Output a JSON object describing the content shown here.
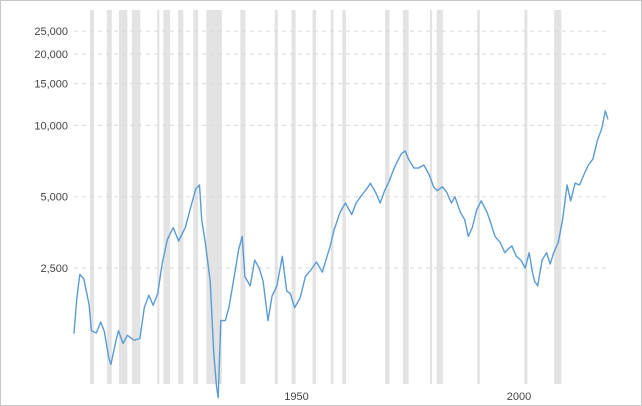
{
  "chart_data": {
    "type": "line",
    "title": "",
    "xlabel": "",
    "ylabel": "",
    "x_scale": "year",
    "y_scale": "log",
    "xlim": [
      1900,
      2020
    ],
    "ylim": [
      700,
      30000
    ],
    "grid": {
      "horizontal": true,
      "vertical": false
    },
    "legend": "none",
    "y_ticks": [
      {
        "value": 2500,
        "label": "2,500"
      },
      {
        "value": 5000,
        "label": "5,000"
      },
      {
        "value": 10000,
        "label": "10,000"
      },
      {
        "value": 15000,
        "label": "15,000"
      },
      {
        "value": 20000,
        "label": "20,000"
      },
      {
        "value": 25000,
        "label": "25,000"
      }
    ],
    "x_ticks": [
      {
        "value": 1950,
        "label": "1950"
      },
      {
        "value": 2000,
        "label": "2000"
      }
    ],
    "recession_bands": [
      [
        1903.6,
        1904.5
      ],
      [
        1907.4,
        1908.5
      ],
      [
        1910.1,
        1912.0
      ],
      [
        1913.0,
        1914.9
      ],
      [
        1918.7,
        1919.2
      ],
      [
        1920.1,
        1921.6
      ],
      [
        1923.4,
        1924.6
      ],
      [
        1926.8,
        1927.9
      ],
      [
        1929.7,
        1933.2
      ],
      [
        1937.4,
        1938.5
      ],
      [
        1945.1,
        1945.8
      ],
      [
        1948.9,
        1949.8
      ],
      [
        1953.6,
        1954.4
      ],
      [
        1957.7,
        1958.3
      ],
      [
        1960.3,
        1961.1
      ],
      [
        1969.9,
        1970.9
      ],
      [
        1973.9,
        1975.2
      ],
      [
        1980.0,
        1980.5
      ],
      [
        1981.5,
        1982.9
      ],
      [
        1990.6,
        1991.2
      ],
      [
        2001.2,
        2001.9
      ],
      [
        2007.9,
        2009.5
      ]
    ],
    "series": [
      {
        "name": "",
        "color": "#5b9bd5",
        "points": [
          [
            1900.0,
            1320
          ],
          [
            1900.6,
            1850
          ],
          [
            1901.3,
            2350
          ],
          [
            1902.2,
            2250
          ],
          [
            1903.4,
            1750
          ],
          [
            1903.9,
            1360
          ],
          [
            1905.0,
            1330
          ],
          [
            1906.0,
            1480
          ],
          [
            1906.8,
            1350
          ],
          [
            1907.8,
            1050
          ],
          [
            1908.3,
            980
          ],
          [
            1909.5,
            1250
          ],
          [
            1910.0,
            1360
          ],
          [
            1911.0,
            1200
          ],
          [
            1912.0,
            1300
          ],
          [
            1913.5,
            1240
          ],
          [
            1914.8,
            1260
          ],
          [
            1915.8,
            1700
          ],
          [
            1916.8,
            1920
          ],
          [
            1917.8,
            1740
          ],
          [
            1918.8,
            1950
          ],
          [
            1919.8,
            2600
          ],
          [
            1921.0,
            3300
          ],
          [
            1922.3,
            3700
          ],
          [
            1923.5,
            3250
          ],
          [
            1925.0,
            3700
          ],
          [
            1926.2,
            4500
          ],
          [
            1927.4,
            5400
          ],
          [
            1928.2,
            5600
          ],
          [
            1928.7,
            4000
          ],
          [
            1929.5,
            3200
          ],
          [
            1930.6,
            2200
          ],
          [
            1931.4,
            1100
          ],
          [
            1932.0,
            800
          ],
          [
            1932.4,
            710
          ],
          [
            1933.0,
            1500
          ],
          [
            1934.0,
            1500
          ],
          [
            1934.8,
            1700
          ],
          [
            1936.0,
            2300
          ],
          [
            1937.0,
            3000
          ],
          [
            1937.8,
            3400
          ],
          [
            1938.4,
            2300
          ],
          [
            1939.6,
            2100
          ],
          [
            1940.6,
            2700
          ],
          [
            1941.6,
            2500
          ],
          [
            1942.5,
            2200
          ],
          [
            1943.6,
            1500
          ],
          [
            1944.5,
            1900
          ],
          [
            1945.6,
            2100
          ],
          [
            1946.8,
            2800
          ],
          [
            1947.8,
            2000
          ],
          [
            1948.6,
            1950
          ],
          [
            1949.6,
            1700
          ],
          [
            1950.8,
            1870
          ],
          [
            1952.0,
            2300
          ],
          [
            1953.2,
            2450
          ],
          [
            1954.5,
            2650
          ],
          [
            1955.8,
            2400
          ],
          [
            1956.6,
            2700
          ],
          [
            1957.6,
            3100
          ],
          [
            1958.4,
            3600
          ],
          [
            1959.8,
            4300
          ],
          [
            1961.0,
            4700
          ],
          [
            1962.4,
            4200
          ],
          [
            1963.4,
            4700
          ],
          [
            1964.4,
            5000
          ],
          [
            1965.8,
            5400
          ],
          [
            1966.6,
            5700
          ],
          [
            1967.8,
            5200
          ],
          [
            1968.8,
            4700
          ],
          [
            1969.8,
            5300
          ],
          [
            1970.8,
            5800
          ],
          [
            1971.8,
            6500
          ],
          [
            1972.6,
            7000
          ],
          [
            1973.6,
            7600
          ],
          [
            1974.4,
            7800
          ],
          [
            1975.2,
            7200
          ],
          [
            1976.4,
            6600
          ],
          [
            1977.4,
            6600
          ],
          [
            1978.6,
            6800
          ],
          [
            1979.8,
            6200
          ],
          [
            1980.8,
            5500
          ],
          [
            1981.6,
            5300
          ],
          [
            1982.8,
            5500
          ],
          [
            1983.8,
            5200
          ],
          [
            1984.8,
            4700
          ],
          [
            1985.6,
            5000
          ],
          [
            1986.8,
            4300
          ],
          [
            1987.8,
            4000
          ],
          [
            1988.6,
            3400
          ],
          [
            1989.5,
            3700
          ],
          [
            1990.5,
            4400
          ],
          [
            1991.5,
            4800
          ],
          [
            1992.8,
            4300
          ],
          [
            1993.8,
            3800
          ],
          [
            1994.6,
            3400
          ],
          [
            1995.8,
            3200
          ],
          [
            1996.8,
            2900
          ],
          [
            1997.5,
            3000
          ],
          [
            1998.4,
            3100
          ],
          [
            1999.4,
            2800
          ],
          [
            2000.4,
            2700
          ],
          [
            2001.4,
            2500
          ],
          [
            2002.3,
            2900
          ],
          [
            2003.0,
            2400
          ],
          [
            2003.5,
            2200
          ],
          [
            2004.2,
            2100
          ],
          [
            2005.2,
            2700
          ],
          [
            2006.2,
            2900
          ],
          [
            2007.0,
            2600
          ],
          [
            2007.8,
            2900
          ],
          [
            2008.8,
            3200
          ],
          [
            2009.8,
            4000
          ],
          [
            2010.8,
            5600
          ],
          [
            2011.6,
            4800
          ],
          [
            2012.6,
            5700
          ],
          [
            2013.6,
            5600
          ],
          [
            2014.6,
            6200
          ],
          [
            2015.6,
            6800
          ],
          [
            2016.6,
            7200
          ],
          [
            2017.6,
            8600
          ],
          [
            2018.6,
            9700
          ],
          [
            2019.4,
            11500
          ],
          [
            2020.0,
            10600
          ]
        ]
      }
    ]
  }
}
